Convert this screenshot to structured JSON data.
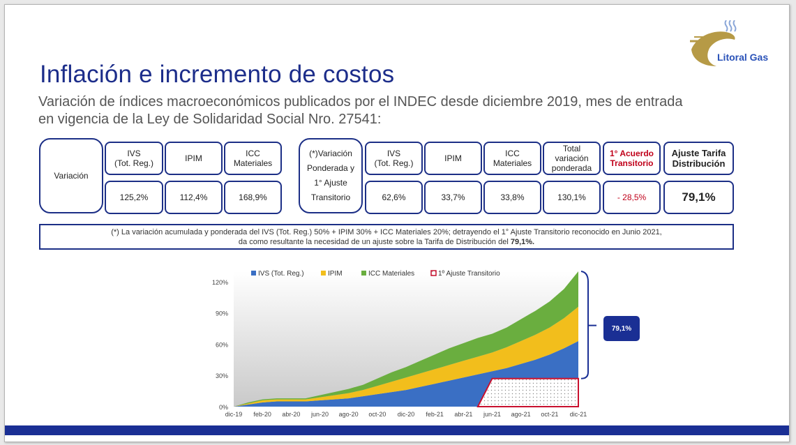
{
  "brand": {
    "name": "Litoral Gas"
  },
  "title": "Inflación e incremento de costos",
  "subtitle": "Variación de índices macroeconómicos publicados por el INDEC desde diciembre 2019, mes de entrada en vigencia de la Ley de Solidaridad Social Nro. 27541:",
  "table_left": {
    "row_label": "Variación",
    "headers": [
      "IVS\n(Tot. Reg.)",
      "IPIM",
      "ICC\nMateriales"
    ],
    "values": [
      "125,2%",
      "112,4%",
      "168,9%"
    ]
  },
  "table_right": {
    "row_label": "(*)Variación Ponderada y 1° Ajuste Transitorio",
    "headers": [
      "IVS\n(Tot. Reg.)",
      "IPIM",
      "ICC\nMateriales",
      "Total\nvariación\nponderada",
      "1° Acuerdo\nTransitorio",
      "Ajuste Tarifa\nDistribución"
    ],
    "values": [
      "62,6%",
      "33,7%",
      "33,8%",
      "130,1%",
      "- 28,5%",
      "79,1%"
    ]
  },
  "note": {
    "line1": "(*) La variación acumulada y ponderada del IVS (Tot. Reg.) 50% + IPIM 30% + ICC Materiales 20%; detrayendo el 1° Ajuste Transitorio reconocido en Junio 2021,",
    "line2_prefix": "da como resultante la necesidad de un ajuste sobre la Tarifa de Distribución del ",
    "line2_bold": "79,1%."
  },
  "badge": "79,1%",
  "colors": {
    "ivs": "#3a6fc4",
    "ipim": "#f2be1c",
    "icc": "#6aae3f",
    "transitorio": "#c8102e",
    "navy": "#1a2f94"
  },
  "chart_data": {
    "type": "area",
    "stacked": true,
    "x": [
      "dic-19",
      "ene-20",
      "feb-20",
      "mar-20",
      "abr-20",
      "may-20",
      "jun-20",
      "jul-20",
      "ago-20",
      "sep-20",
      "oct-20",
      "nov-20",
      "dic-20",
      "ene-21",
      "feb-21",
      "mar-21",
      "abr-21",
      "may-21",
      "jun-21",
      "jul-21",
      "ago-21",
      "sep-21",
      "oct-21",
      "nov-21",
      "dic-21"
    ],
    "x_tick_labels": [
      "dic-19",
      "feb-20",
      "abr-20",
      "jun-20",
      "ago-20",
      "oct-20",
      "dic-20",
      "feb-21",
      "abr-21",
      "jun-21",
      "ago-21",
      "oct-21",
      "dic-21"
    ],
    "y_ticks": [
      "0%",
      "30%",
      "60%",
      "90%",
      "120%"
    ],
    "ylim": [
      0,
      130
    ],
    "series": [
      {
        "name": "IVS (Tot. Reg.)",
        "values": [
          0,
          2,
          4,
          5,
          5,
          5,
          6,
          7,
          8,
          10,
          12,
          14,
          16,
          19,
          22,
          25,
          28,
          31,
          34,
          37,
          41,
          45,
          50,
          56,
          63
        ]
      },
      {
        "name": "IPIM",
        "values": [
          0,
          1,
          2,
          2,
          2,
          2,
          3,
          4,
          5,
          6,
          8,
          10,
          12,
          13,
          14,
          15,
          16,
          17,
          18,
          20,
          22,
          24,
          26,
          29,
          33
        ]
      },
      {
        "name": "ICC Materiales",
        "values": [
          0,
          1,
          1,
          1,
          1,
          1,
          2,
          3,
          4,
          5,
          7,
          9,
          10,
          12,
          14,
          16,
          17,
          18,
          18,
          19,
          21,
          23,
          25,
          28,
          34
        ]
      }
    ],
    "overlay": {
      "name": "1º Ajuste Transitorio",
      "start": "may-21",
      "end": "dic-21",
      "value": 27
    },
    "legend_position": "top"
  }
}
